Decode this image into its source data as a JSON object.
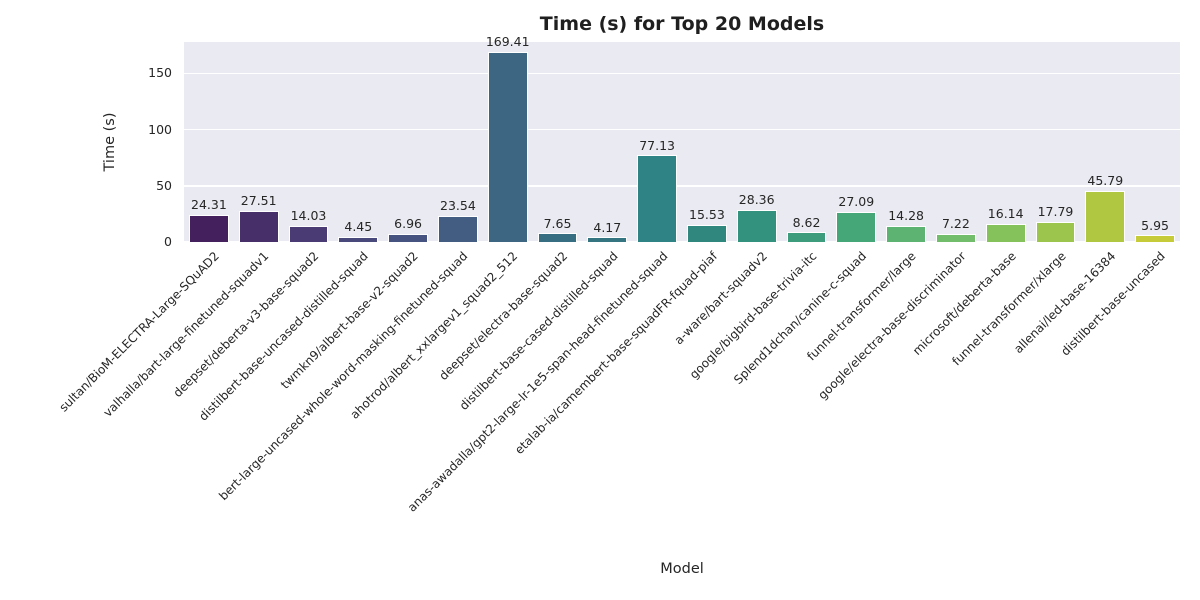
{
  "chart_data": {
    "type": "bar",
    "title": "Time (s) for Top 20 Models",
    "xlabel": "Model",
    "ylabel": "Time (s)",
    "ylim": [
      0,
      177.9
    ],
    "yticks": [
      0,
      50,
      100,
      150
    ],
    "grid": true,
    "legend": false,
    "x_tick_rotation_degrees": 45,
    "categories": [
      "sultan/BioM-ELECTRA-Large-SQuAD2",
      "valhalla/bart-large-finetuned-squadv1",
      "deepset/deberta-v3-base-squad2",
      "distilbert-base-uncased-distilled-squad",
      "twmkn9/albert-base-v2-squad2",
      "bert-large-uncased-whole-word-masking-finetuned-squad",
      "ahotrod/albert_xxlargev1_squad2_512",
      "deepset/electra-base-squad2",
      "distilbert-base-cased-distilled-squad",
      "anas-awadalla/gpt2-large-lr-1e5-span-head-finetuned-squad",
      "etalab-ia/camembert-base-squadFR-fquad-piaf",
      "a-ware/bart-squadv2",
      "google/bigbird-base-trivia-itc",
      "Splend1dchan/canine-c-squad",
      "funnel-transformer/large",
      "google/electra-base-discriminator",
      "microsoft/deberta-base",
      "funnel-transformer/xlarge",
      "allenai/led-base-16384",
      "distilbert-base-uncased"
    ],
    "values": [
      24.31,
      27.51,
      14.03,
      4.45,
      6.96,
      23.54,
      169.41,
      7.65,
      4.17,
      77.13,
      15.53,
      28.36,
      8.62,
      27.09,
      14.28,
      7.22,
      16.14,
      17.79,
      45.79,
      5.95
    ],
    "value_labels": [
      "24.31",
      "27.51",
      "14.03",
      "4.45",
      "6.96",
      "23.54",
      "169.41",
      "7.65",
      "4.17",
      "77.13",
      "15.53",
      "28.36",
      "8.62",
      "27.09",
      "14.28",
      "7.22",
      "16.14",
      "17.79",
      "45.79",
      "5.95"
    ],
    "bar_colors": [
      "#44205C",
      "#473069",
      "#4A3B74",
      "#49497C",
      "#465380",
      "#425D81",
      "#3D6682",
      "#386E82",
      "#357581",
      "#2F8384",
      "#30877E",
      "#33927E",
      "#3C9C7B",
      "#45A778",
      "#5CB372",
      "#72BD6B",
      "#85C25C",
      "#9BC54C",
      "#B0C841",
      "#C6CB3A"
    ],
    "colors": {
      "plot_background": "#eaeaf2",
      "gridline": "#ffffff",
      "bar_edge": "#ffffff",
      "tick_text": "#262626",
      "title_text": "#1f1f1f"
    }
  }
}
